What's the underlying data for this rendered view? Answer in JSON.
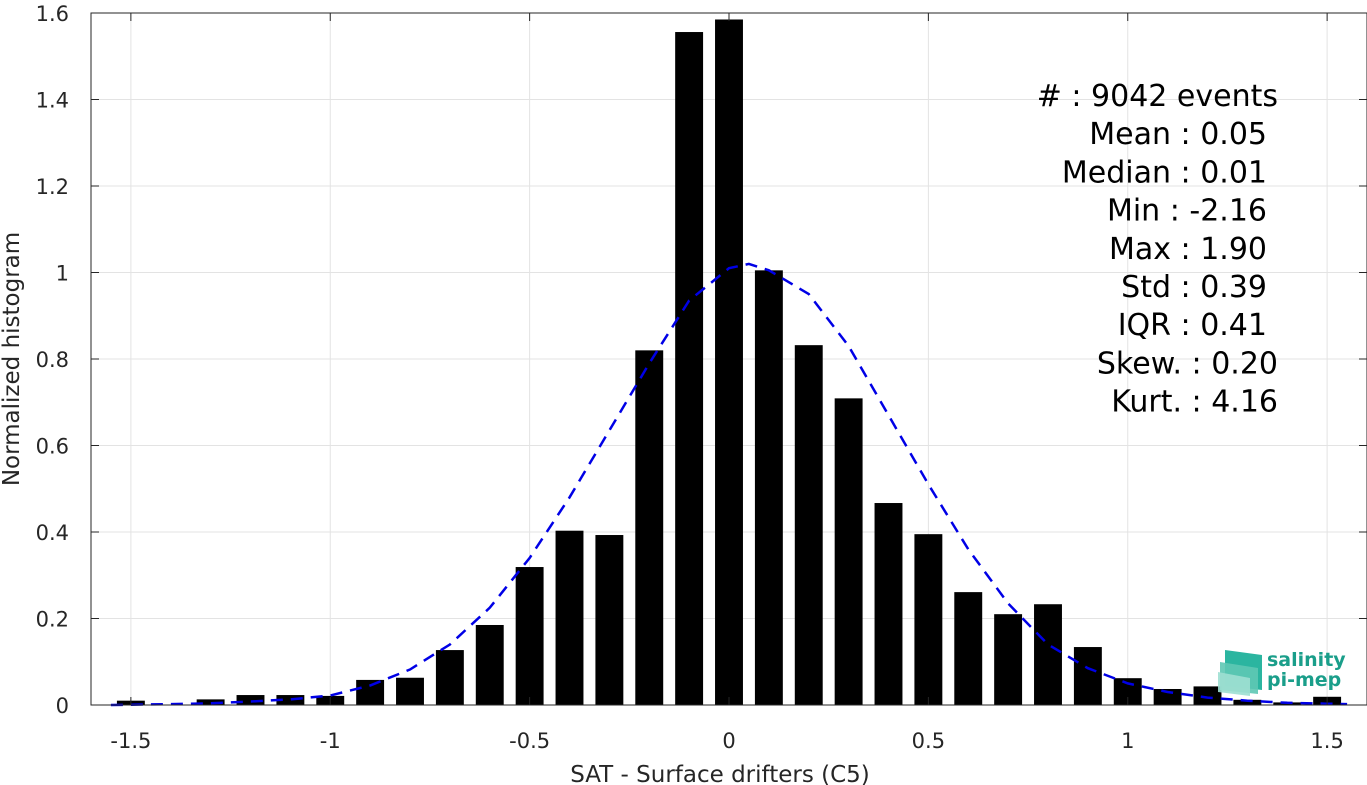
{
  "chart_data": {
    "type": "bar",
    "xlabel": "SAT - Surface drifters (C5)",
    "ylabel": "Normalized histogram",
    "xlim": [
      -1.6,
      1.6
    ],
    "ylim": [
      0,
      1.6
    ],
    "grid": true,
    "x_ticks": [
      -1.5,
      -1,
      -0.5,
      0,
      0.5,
      1,
      1.5
    ],
    "x_tick_labels": [
      "-1.5",
      "-1",
      "-0.5",
      "0",
      "0.5",
      "1",
      "1.5"
    ],
    "y_ticks": [
      0,
      0.2,
      0.4,
      0.6,
      0.8,
      1,
      1.2,
      1.4,
      1.6
    ],
    "y_tick_labels": [
      "0",
      "0.2",
      "0.4",
      "0.6",
      "0.8",
      "1",
      "1.2",
      "1.4",
      "1.6"
    ],
    "bar_width": 0.07,
    "bar_color": "#000000",
    "bins": [
      {
        "x": -1.5,
        "y": 0.01
      },
      {
        "x": -1.3,
        "y": 0.013
      },
      {
        "x": -1.2,
        "y": 0.023
      },
      {
        "x": -1.1,
        "y": 0.023
      },
      {
        "x": -1.0,
        "y": 0.021
      },
      {
        "x": -0.9,
        "y": 0.058
      },
      {
        "x": -0.8,
        "y": 0.063
      },
      {
        "x": -0.7,
        "y": 0.127
      },
      {
        "x": -0.6,
        "y": 0.185
      },
      {
        "x": -0.5,
        "y": 0.319
      },
      {
        "x": -0.4,
        "y": 0.403
      },
      {
        "x": -0.3,
        "y": 0.393
      },
      {
        "x": -0.2,
        "y": 0.82
      },
      {
        "x": -0.1,
        "y": 1.556
      },
      {
        "x": 0.0,
        "y": 1.585
      },
      {
        "x": 0.1,
        "y": 1.005
      },
      {
        "x": 0.2,
        "y": 0.832
      },
      {
        "x": 0.3,
        "y": 0.709
      },
      {
        "x": 0.4,
        "y": 0.467
      },
      {
        "x": 0.5,
        "y": 0.395
      },
      {
        "x": 0.6,
        "y": 0.261
      },
      {
        "x": 0.7,
        "y": 0.21
      },
      {
        "x": 0.8,
        "y": 0.233
      },
      {
        "x": 0.9,
        "y": 0.134
      },
      {
        "x": 1.0,
        "y": 0.062
      },
      {
        "x": 1.1,
        "y": 0.037
      },
      {
        "x": 1.2,
        "y": 0.043
      },
      {
        "x": 1.3,
        "y": 0.012
      },
      {
        "x": 1.4,
        "y": 0.006
      },
      {
        "x": 1.5,
        "y": 0.019
      }
    ],
    "fit_curve": {
      "style": "dashed",
      "color": "#0000e6",
      "points": [
        [
          -1.55,
          0.0
        ],
        [
          -1.4,
          0.002
        ],
        [
          -1.3,
          0.004
        ],
        [
          -1.2,
          0.008
        ],
        [
          -1.1,
          0.013
        ],
        [
          -1.0,
          0.022
        ],
        [
          -0.9,
          0.045
        ],
        [
          -0.8,
          0.082
        ],
        [
          -0.7,
          0.14
        ],
        [
          -0.6,
          0.225
        ],
        [
          -0.5,
          0.34
        ],
        [
          -0.4,
          0.48
        ],
        [
          -0.3,
          0.635
        ],
        [
          -0.2,
          0.79
        ],
        [
          -0.1,
          0.935
        ],
        [
          0.0,
          1.01
        ],
        [
          0.05,
          1.02
        ],
        [
          0.1,
          1.005
        ],
        [
          0.2,
          0.95
        ],
        [
          0.3,
          0.83
        ],
        [
          0.4,
          0.67
        ],
        [
          0.5,
          0.51
        ],
        [
          0.6,
          0.36
        ],
        [
          0.7,
          0.235
        ],
        [
          0.8,
          0.14
        ],
        [
          0.9,
          0.085
        ],
        [
          1.0,
          0.05
        ],
        [
          1.1,
          0.03
        ],
        [
          1.2,
          0.017
        ],
        [
          1.3,
          0.01
        ],
        [
          1.4,
          0.005
        ],
        [
          1.5,
          0.003
        ],
        [
          1.55,
          0.002
        ]
      ]
    },
    "stats": [
      "#  : 9042 events",
      "Mean : 0.05",
      "Median : 0.01",
      "Min : -2.16",
      "Max : 1.90",
      "Std : 0.39",
      "IQR : 0.41",
      "Skew. : 0.20",
      "Kurt. : 4.16"
    ]
  },
  "logo": {
    "line1": "salinity",
    "line2": "pi-mep"
  }
}
